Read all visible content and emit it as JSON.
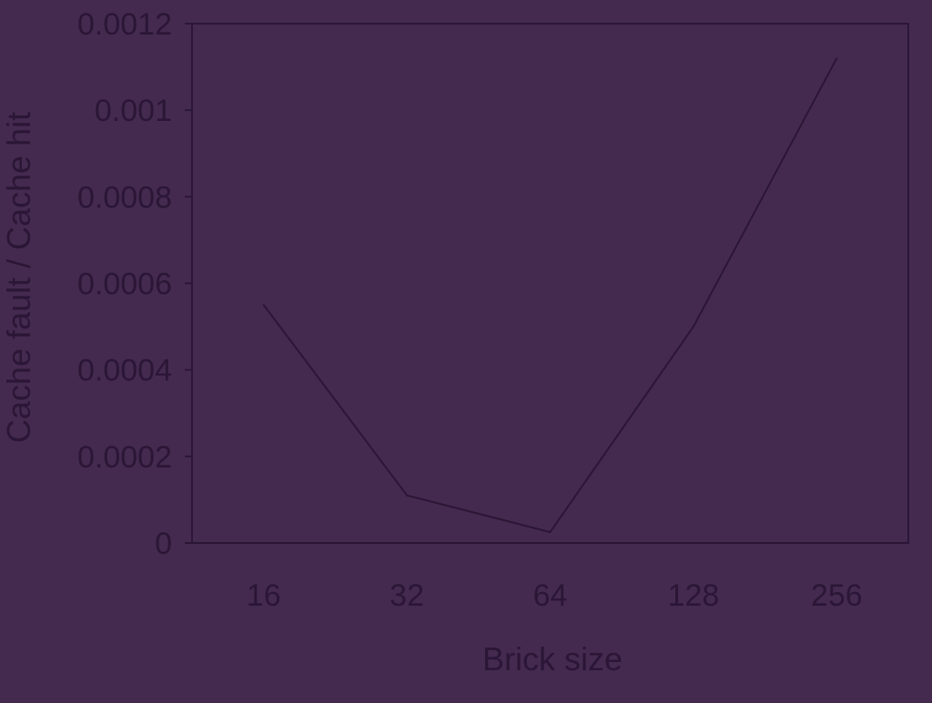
{
  "colors": {
    "background": "#442a4f",
    "ink": "#2b1636"
  },
  "chart_data": {
    "type": "line",
    "title": "",
    "xlabel": "Brick size",
    "ylabel": "Cache fault / Cache hit",
    "categories": [
      "16",
      "32",
      "64",
      "128",
      "256"
    ],
    "series": [
      {
        "values": [
          0.00055,
          0.00011,
          2.5e-05,
          0.0005,
          0.00112
        ]
      }
    ],
    "ylim": [
      0,
      0.0012
    ],
    "yticks": [
      "0",
      "0.0002",
      "0.0004",
      "0.0006",
      "0.0008",
      "0.001",
      "0.0012"
    ],
    "ytick_values": [
      0,
      0.0002,
      0.0004,
      0.0006,
      0.0008,
      0.001,
      0.0012
    ],
    "grid": false,
    "legend": "none"
  }
}
